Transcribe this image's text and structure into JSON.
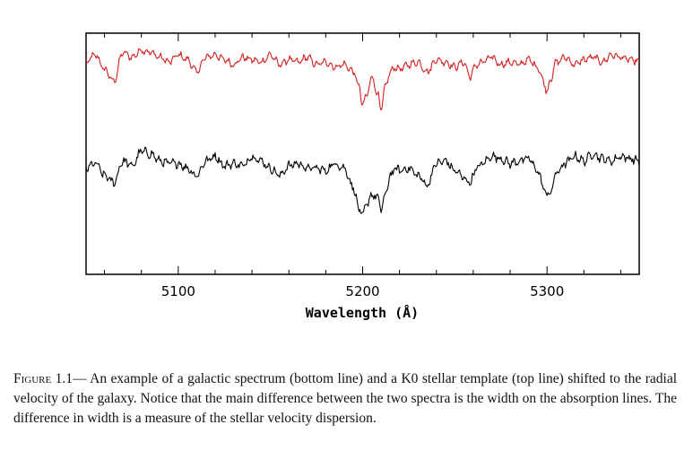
{
  "chart_data": {
    "type": "line",
    "xlabel": "Wavelength (Å)",
    "xlim": [
      5050,
      5350
    ],
    "xticks": [
      5100,
      5200,
      5300
    ],
    "yticks_shown": false,
    "grid": false,
    "series": [
      {
        "color": "#d32020",
        "x": [
          5050,
          5055,
          5060,
          5065,
          5070,
          5075,
          5080,
          5085,
          5090,
          5095,
          5100,
          5105,
          5110,
          5115,
          5120,
          5125,
          5130,
          5135,
          5140,
          5145,
          5150,
          5155,
          5160,
          5165,
          5170,
          5175,
          5180,
          5185,
          5190,
          5195,
          5198,
          5200,
          5202,
          5205,
          5208,
          5210,
          5212,
          5215,
          5218,
          5220,
          5225,
          5230,
          5235,
          5240,
          5245,
          5250,
          5255,
          5258,
          5262,
          5265,
          5270,
          5275,
          5280,
          5285,
          5290,
          5295,
          5298,
          5300,
          5302,
          5305,
          5310,
          5315,
          5320,
          5325,
          5330,
          5335,
          5340,
          5345,
          5350
        ],
        "y": [
          0.88,
          0.91,
          0.85,
          0.8,
          0.92,
          0.9,
          0.93,
          0.92,
          0.9,
          0.88,
          0.91,
          0.89,
          0.84,
          0.9,
          0.91,
          0.89,
          0.87,
          0.9,
          0.89,
          0.88,
          0.91,
          0.87,
          0.89,
          0.88,
          0.9,
          0.87,
          0.88,
          0.86,
          0.87,
          0.84,
          0.78,
          0.7,
          0.74,
          0.82,
          0.75,
          0.68,
          0.77,
          0.84,
          0.86,
          0.85,
          0.87,
          0.88,
          0.84,
          0.89,
          0.88,
          0.86,
          0.88,
          0.82,
          0.87,
          0.88,
          0.9,
          0.87,
          0.88,
          0.87,
          0.89,
          0.86,
          0.8,
          0.76,
          0.81,
          0.88,
          0.9,
          0.87,
          0.89,
          0.9,
          0.88,
          0.91,
          0.9,
          0.89,
          0.88
        ]
      },
      {
        "color": "#000000",
        "x": [
          5050,
          5055,
          5060,
          5065,
          5070,
          5075,
          5080,
          5085,
          5090,
          5095,
          5100,
          5105,
          5110,
          5115,
          5120,
          5125,
          5130,
          5135,
          5140,
          5145,
          5150,
          5155,
          5160,
          5165,
          5170,
          5175,
          5180,
          5185,
          5190,
          5195,
          5198,
          5200,
          5202,
          5205,
          5208,
          5210,
          5212,
          5215,
          5218,
          5220,
          5225,
          5230,
          5235,
          5240,
          5245,
          5250,
          5255,
          5258,
          5262,
          5265,
          5270,
          5275,
          5280,
          5285,
          5290,
          5295,
          5298,
          5300,
          5302,
          5305,
          5310,
          5315,
          5320,
          5325,
          5330,
          5335,
          5340,
          5345,
          5350
        ],
        "y": [
          0.44,
          0.46,
          0.41,
          0.38,
          0.47,
          0.45,
          0.51,
          0.5,
          0.47,
          0.46,
          0.46,
          0.44,
          0.41,
          0.47,
          0.49,
          0.45,
          0.46,
          0.45,
          0.49,
          0.47,
          0.44,
          0.41,
          0.45,
          0.46,
          0.44,
          0.44,
          0.43,
          0.46,
          0.44,
          0.36,
          0.27,
          0.24,
          0.29,
          0.33,
          0.32,
          0.27,
          0.32,
          0.41,
          0.44,
          0.43,
          0.44,
          0.41,
          0.37,
          0.46,
          0.47,
          0.43,
          0.4,
          0.38,
          0.44,
          0.46,
          0.49,
          0.48,
          0.46,
          0.47,
          0.48,
          0.43,
          0.36,
          0.33,
          0.34,
          0.42,
          0.46,
          0.49,
          0.47,
          0.5,
          0.48,
          0.47,
          0.49,
          0.48,
          0.47
        ]
      }
    ]
  },
  "caption": {
    "label": "Figure 1.1",
    "dash": "—",
    "text": "An example of a galactic spectrum (bottom line) and a K0 stellar template (top line) shifted to the radial velocity of the galaxy. Notice that the main difference between the two spectra is the width on the absorption lines. The difference in width is a measure of the stellar velocity dispersion."
  }
}
